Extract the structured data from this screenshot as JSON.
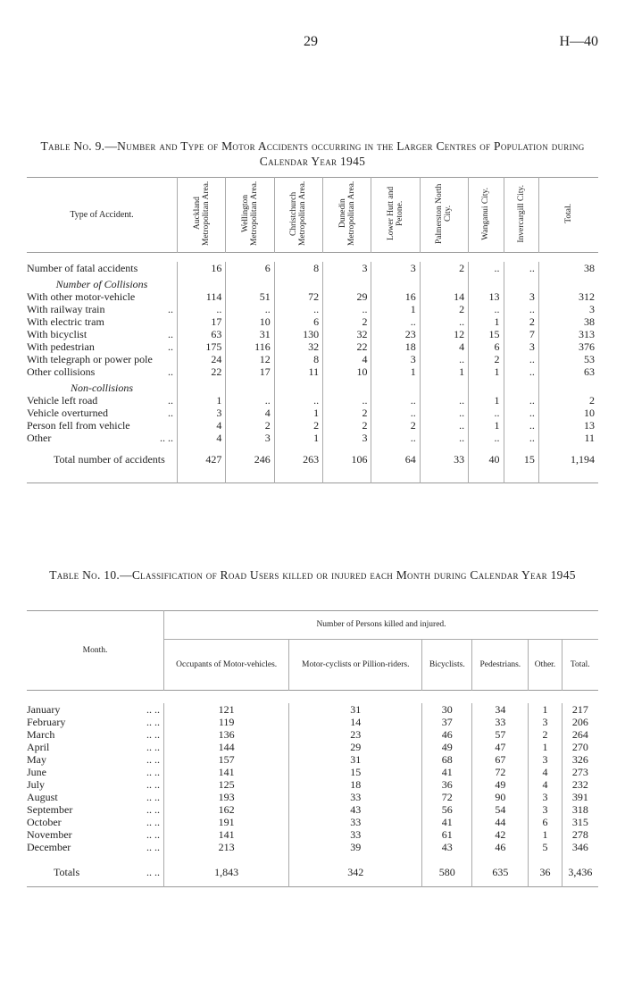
{
  "header": {
    "page_number": "29",
    "code": "H—40"
  },
  "table9": {
    "title": "Table No. 9.—Number and Type of Motor Accidents occurring in the Larger Centres of Population during Calendar Year 1945",
    "columns": [
      "Type of Accident.",
      "Auckland Metropolitan Area.",
      "Wellington Metropolitan Area.",
      "Christchurch Metropolitan Area.",
      "Dunedin Metropolitan Area.",
      "Lower Hutt and Petone.",
      "Palmerston North City.",
      "Wanganui City.",
      "Invercargill City.",
      "Total."
    ],
    "rows": [
      {
        "label": "Number of fatal accidents",
        "values": [
          16,
          6,
          8,
          3,
          3,
          2,
          "..",
          "..",
          38
        ]
      },
      {
        "section": "Number of Collisions"
      },
      {
        "label": "With other motor-vehicle",
        "values": [
          114,
          51,
          72,
          29,
          16,
          14,
          13,
          3,
          312
        ]
      },
      {
        "label": "With railway train",
        "leader": "..",
        "values": [
          "..",
          "..",
          "..",
          "..",
          1,
          2,
          "..",
          "..",
          3
        ]
      },
      {
        "label": "With electric tram",
        "values": [
          17,
          10,
          6,
          2,
          "..",
          "..",
          1,
          2,
          38
        ]
      },
      {
        "label": "With bicyclist",
        "leader": "..",
        "values": [
          63,
          31,
          130,
          32,
          23,
          12,
          15,
          7,
          313
        ]
      },
      {
        "label": "With pedestrian",
        "leader": "..",
        "values": [
          175,
          116,
          32,
          22,
          18,
          4,
          6,
          3,
          376
        ]
      },
      {
        "label": "With telegraph or power pole",
        "values": [
          24,
          12,
          8,
          4,
          3,
          "..",
          2,
          "..",
          53
        ]
      },
      {
        "label": "Other collisions",
        "leader": "..",
        "values": [
          22,
          17,
          11,
          10,
          1,
          1,
          1,
          "..",
          63
        ]
      },
      {
        "section": "Non-collisions"
      },
      {
        "label": "Vehicle left road",
        "leader": "..",
        "values": [
          1,
          "..",
          "..",
          "..",
          "..",
          "..",
          1,
          "..",
          2
        ]
      },
      {
        "label": "Vehicle overturned",
        "leader": "..",
        "values": [
          3,
          4,
          1,
          2,
          "..",
          "..",
          "..",
          "..",
          10
        ]
      },
      {
        "label": "Person fell from vehicle",
        "values": [
          4,
          2,
          2,
          2,
          2,
          "..",
          1,
          "..",
          13
        ]
      },
      {
        "label": "Other",
        "leader": ".. ..",
        "values": [
          4,
          3,
          1,
          3,
          "..",
          "..",
          "..",
          "..",
          11
        ]
      }
    ],
    "total": {
      "label": "Total number of accidents",
      "values": [
        427,
        246,
        263,
        106,
        64,
        33,
        40,
        15,
        "1,194"
      ]
    }
  },
  "table10": {
    "title": "Table No. 10.—Classification of Road Users killed or injured each Month during Calendar Year 1945",
    "month_header": "Month.",
    "group_header": "Number of Persons killed and injured.",
    "columns": [
      "Occupants of Motor-vehicles.",
      "Motor-cyclists or Pillion-riders.",
      "Bicyclists.",
      "Pedestrians.",
      "Other.",
      "Total."
    ],
    "rows": [
      {
        "month": "January",
        "leader": ".. ..",
        "values": [
          121,
          31,
          30,
          34,
          1,
          217
        ]
      },
      {
        "month": "February",
        "leader": ".. ..",
        "values": [
          119,
          14,
          37,
          33,
          3,
          206
        ]
      },
      {
        "month": "March",
        "leader": ".. ..",
        "values": [
          136,
          23,
          46,
          57,
          2,
          264
        ]
      },
      {
        "month": "April",
        "leader": ".. ..",
        "values": [
          144,
          29,
          49,
          47,
          1,
          270
        ]
      },
      {
        "month": "May",
        "leader": ".. ..",
        "values": [
          157,
          31,
          68,
          67,
          3,
          326
        ]
      },
      {
        "month": "June",
        "leader": ".. ..",
        "values": [
          141,
          15,
          41,
          72,
          4,
          273
        ]
      },
      {
        "month": "July",
        "leader": ".. ..",
        "values": [
          125,
          18,
          36,
          49,
          4,
          232
        ]
      },
      {
        "month": "August",
        "leader": ".. ..",
        "values": [
          193,
          33,
          72,
          90,
          3,
          391
        ]
      },
      {
        "month": "September",
        "leader": ".. ..",
        "values": [
          162,
          43,
          56,
          54,
          3,
          318
        ]
      },
      {
        "month": "October",
        "leader": ".. ..",
        "values": [
          191,
          33,
          41,
          44,
          6,
          315
        ]
      },
      {
        "month": "November",
        "leader": ".. ..",
        "values": [
          141,
          33,
          61,
          42,
          1,
          278
        ]
      },
      {
        "month": "December",
        "leader": ".. ..",
        "values": [
          213,
          39,
          43,
          46,
          5,
          346
        ]
      }
    ],
    "total": {
      "label": "Totals",
      "leader": ".. ..",
      "values": [
        "1,843",
        342,
        580,
        635,
        36,
        "3,436"
      ]
    }
  }
}
